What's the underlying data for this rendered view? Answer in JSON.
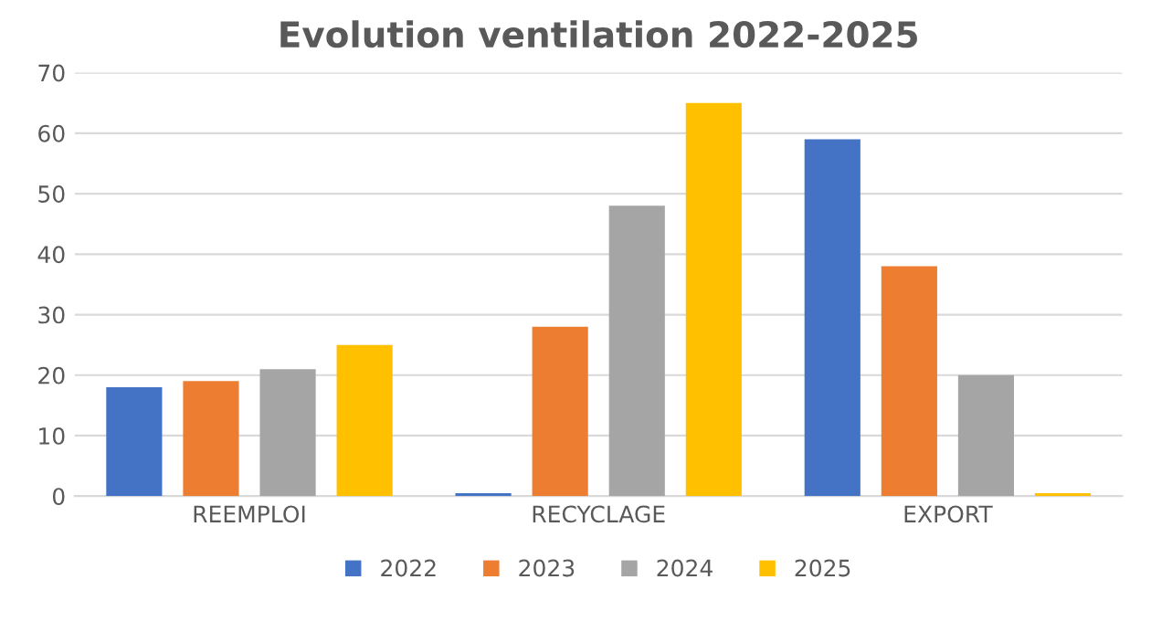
{
  "chart_data": {
    "type": "bar",
    "title": "Evolution ventilation 2022-2025",
    "categories": [
      "REEMPLOI",
      "RECYCLAGE",
      "EXPORT"
    ],
    "series": [
      {
        "name": "2022",
        "color": "#4472c4",
        "values": [
          18,
          0.5,
          59
        ]
      },
      {
        "name": "2023",
        "color": "#ed7d31",
        "values": [
          19,
          28,
          38
        ]
      },
      {
        "name": "2024",
        "color": "#a5a5a5",
        "values": [
          21,
          48,
          20
        ]
      },
      {
        "name": "2025",
        "color": "#ffc000",
        "values": [
          25,
          65,
          0.5
        ]
      }
    ],
    "ylim": [
      0,
      70
    ],
    "yticks": [
      0,
      10,
      20,
      30,
      40,
      50,
      60,
      70
    ],
    "grid": "y",
    "legend": "bottom"
  }
}
